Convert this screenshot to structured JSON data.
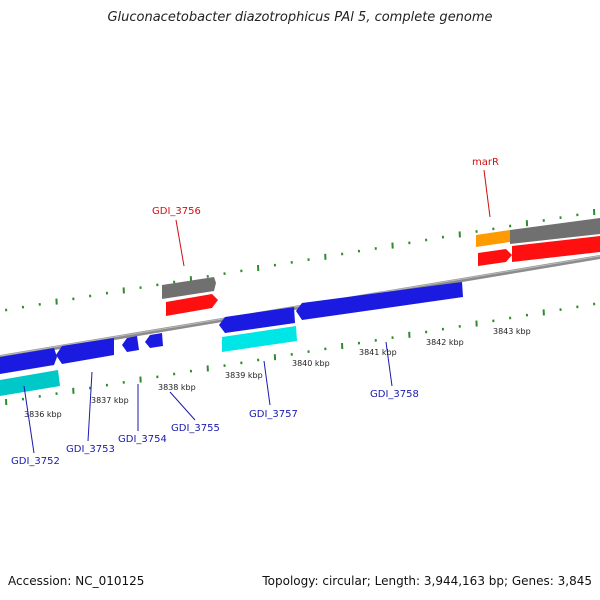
{
  "title": "Gluconacetobacter diazotrophicus PAl 5, complete genome",
  "footer": {
    "accession": "Accession: NC_010125",
    "summary": "Topology: circular; Length: 3,944,163 bp; Genes: 3,845"
  },
  "colors": {
    "backbone": "#8c8c8c",
    "tick": "#2e8b2e",
    "cds_blue": "#1a1ae0",
    "cds_cyan": "#00e5e5",
    "gray_feature": "#707070",
    "red_feature": "#ff1010",
    "orange_feature": "#ff9a00",
    "label_blue": "#1a1ab0",
    "label_red": "#d01010"
  },
  "ticks": {
    "labels": [
      "3836 kbp",
      "3837 kbp",
      "3838 kbp",
      "3839 kbp",
      "3840 kbp",
      "3841 kbp",
      "3842 kbp",
      "3843 kbp"
    ]
  },
  "gene_labels": {
    "top": [
      "GDI_3756",
      "marR"
    ],
    "bottom": [
      "GDI_3752",
      "GDI_3753",
      "GDI_3754",
      "GDI_3755",
      "GDI_3757",
      "GDI_3758"
    ]
  }
}
